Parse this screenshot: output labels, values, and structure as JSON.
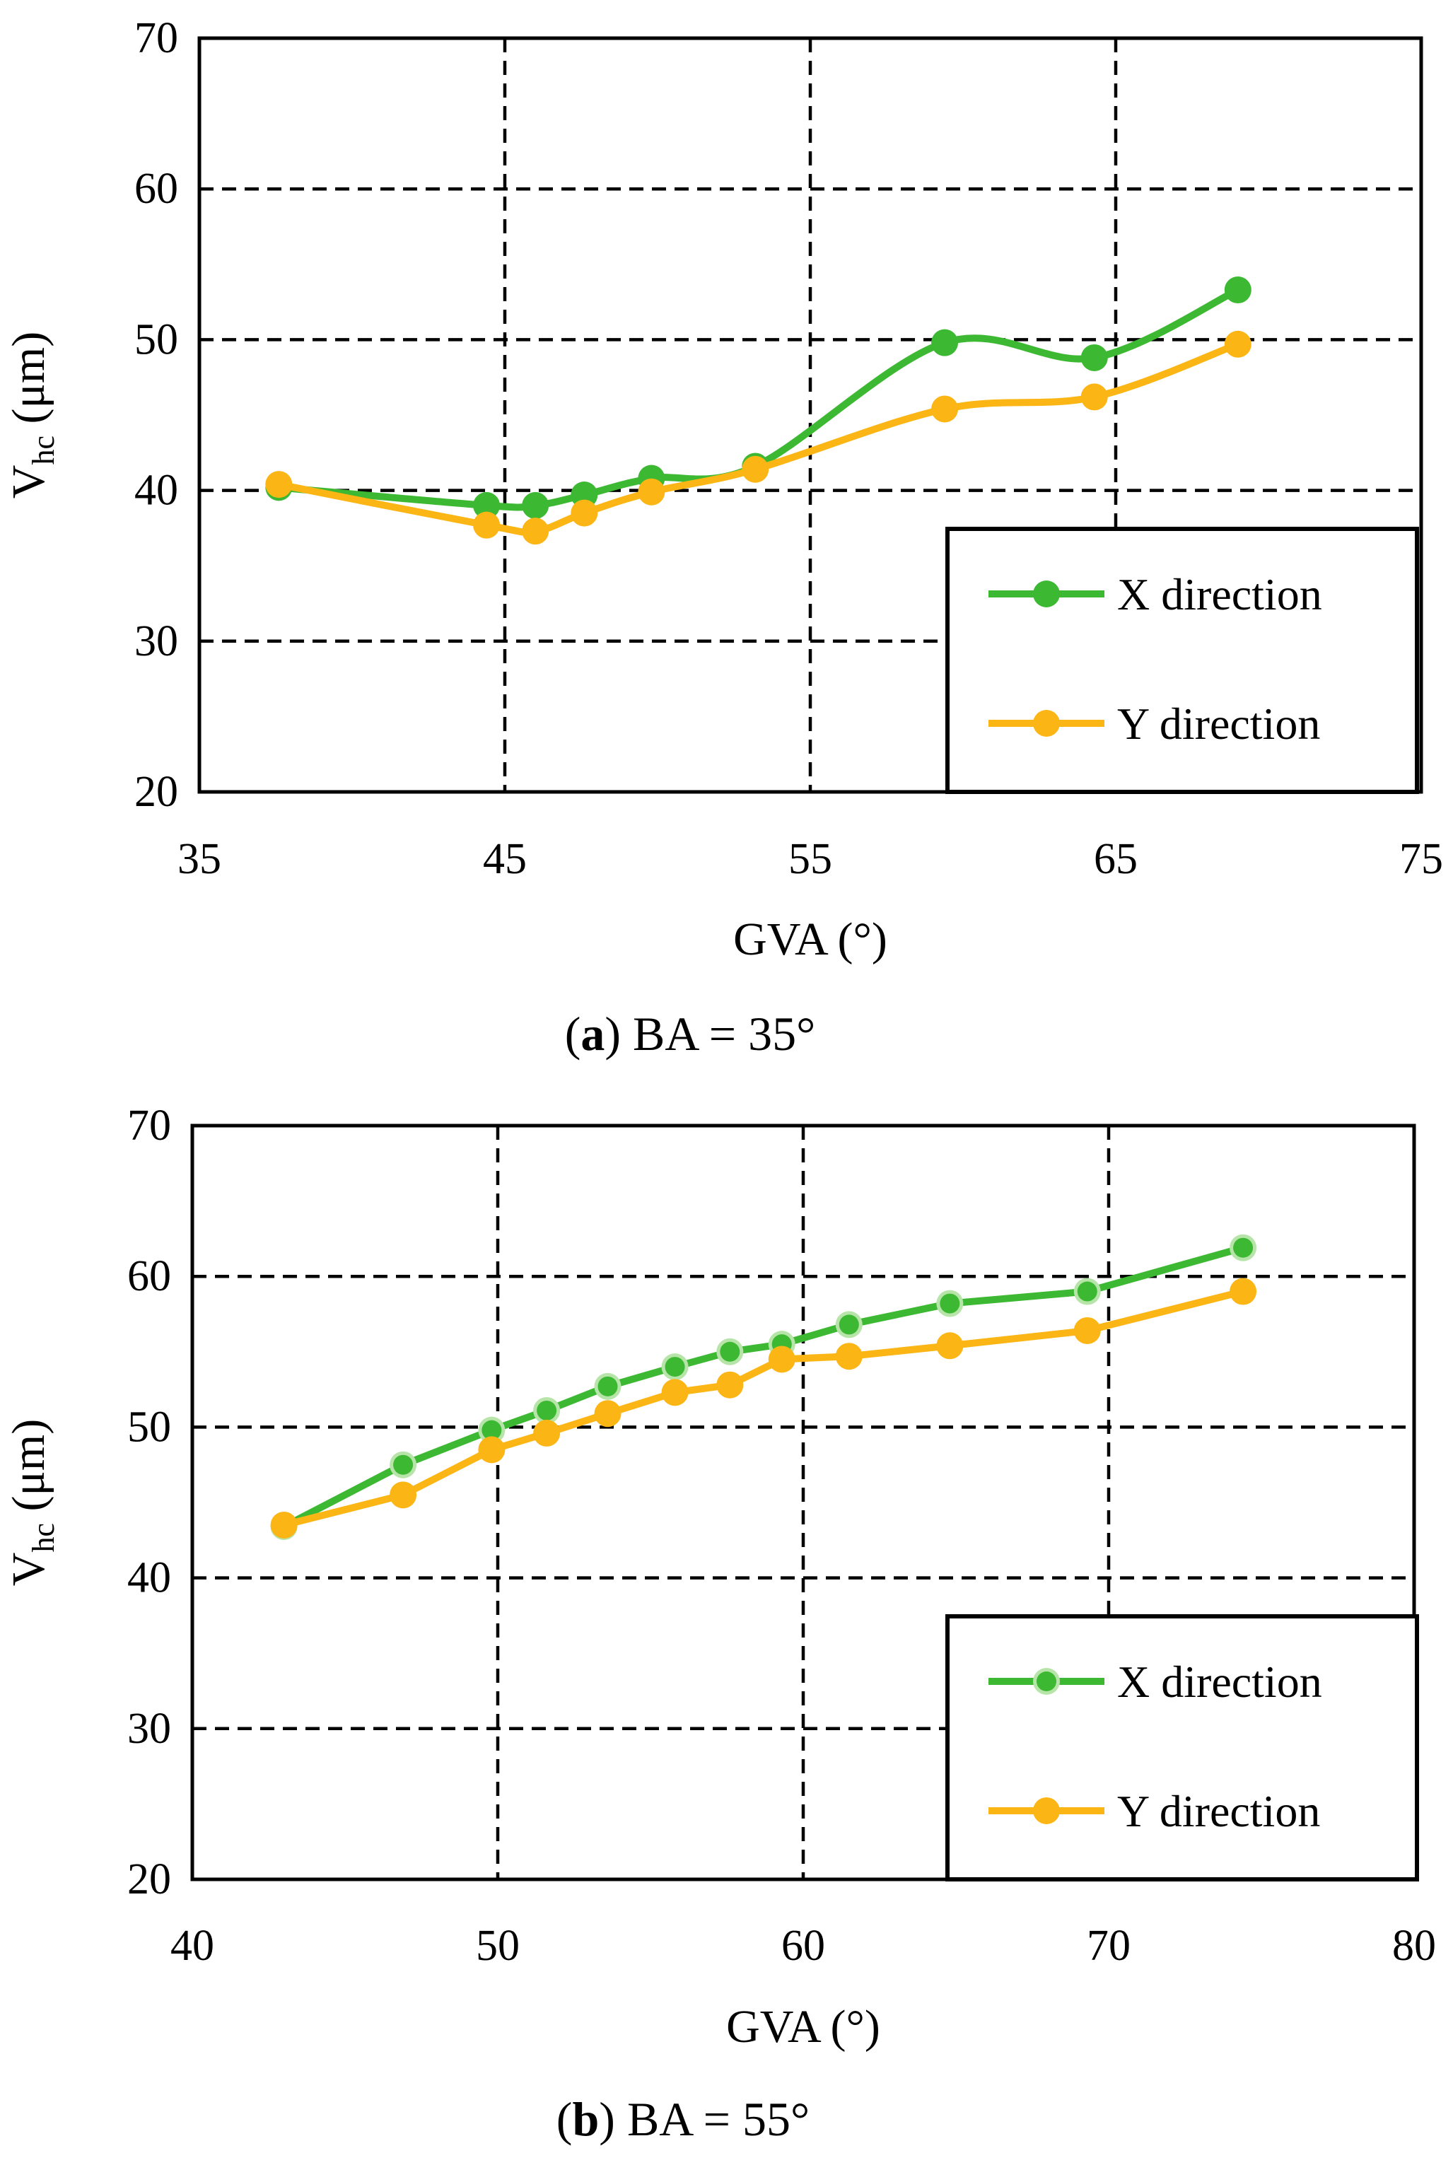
{
  "colors": {
    "x_series": "#3cb832",
    "y_series": "#fbb514",
    "x_series_marker_ring": "#b7e4a8"
  },
  "chart_data": [
    {
      "type": "line",
      "id": "a",
      "caption": {
        "label": "a",
        "text": " BA = 35°"
      },
      "xlabel": "GVA (°)",
      "ylabel_main": "V",
      "ylabel_sub": "hc",
      "ylabel_unit": " (μm)",
      "xlim": [
        35,
        75
      ],
      "ylim": [
        20,
        70
      ],
      "xticks": [
        35,
        45,
        55,
        65,
        75
      ],
      "yticks": [
        20,
        30,
        40,
        50,
        60,
        70
      ],
      "grid": true,
      "legend_position": "bottom-right",
      "series": [
        {
          "name": "X direction",
          "color": "#3cb832",
          "smooth": true,
          "x": [
            37.6,
            44.4,
            46.0,
            47.6,
            49.8,
            53.2,
            59.4,
            64.3,
            69.0
          ],
          "y": [
            40.2,
            39.0,
            39.0,
            39.7,
            40.8,
            41.6,
            49.8,
            48.8,
            53.3
          ]
        },
        {
          "name": "Y direction",
          "color": "#fbb514",
          "smooth": true,
          "x": [
            37.6,
            44.4,
            46.0,
            47.6,
            49.8,
            53.2,
            59.4,
            64.3,
            69.0
          ],
          "y": [
            40.4,
            37.7,
            37.3,
            38.5,
            39.9,
            41.4,
            45.4,
            46.2,
            49.7
          ]
        }
      ]
    },
    {
      "type": "line",
      "id": "b",
      "caption": {
        "label": "b",
        "text": " BA = 55°"
      },
      "xlabel": "GVA (°)",
      "ylabel_main": "V",
      "ylabel_sub": "hc",
      "ylabel_unit": " (μm)",
      "xlim": [
        40,
        80
      ],
      "ylim": [
        20,
        70
      ],
      "xticks": [
        40,
        50,
        60,
        70,
        80
      ],
      "yticks": [
        20,
        30,
        40,
        50,
        60,
        70
      ],
      "grid": true,
      "legend_position": "bottom-right",
      "series": [
        {
          "name": "X direction",
          "color": "#3cb832",
          "ring": true,
          "x": [
            43.0,
            46.9,
            49.8,
            51.6,
            53.6,
            55.8,
            57.6,
            59.3,
            61.5,
            64.8,
            69.3,
            74.4
          ],
          "y": [
            43.4,
            47.5,
            49.8,
            51.1,
            52.7,
            54.0,
            55.0,
            55.5,
            56.8,
            58.2,
            59.0,
            61.9
          ]
        },
        {
          "name": "Y direction",
          "color": "#fbb514",
          "ring": false,
          "x": [
            43.0,
            46.9,
            49.8,
            51.6,
            53.6,
            55.8,
            57.6,
            59.3,
            61.5,
            64.8,
            69.3,
            74.4
          ],
          "y": [
            43.5,
            45.5,
            48.5,
            49.6,
            50.9,
            52.3,
            52.8,
            54.5,
            54.7,
            55.4,
            56.4,
            59.0
          ]
        }
      ]
    }
  ]
}
